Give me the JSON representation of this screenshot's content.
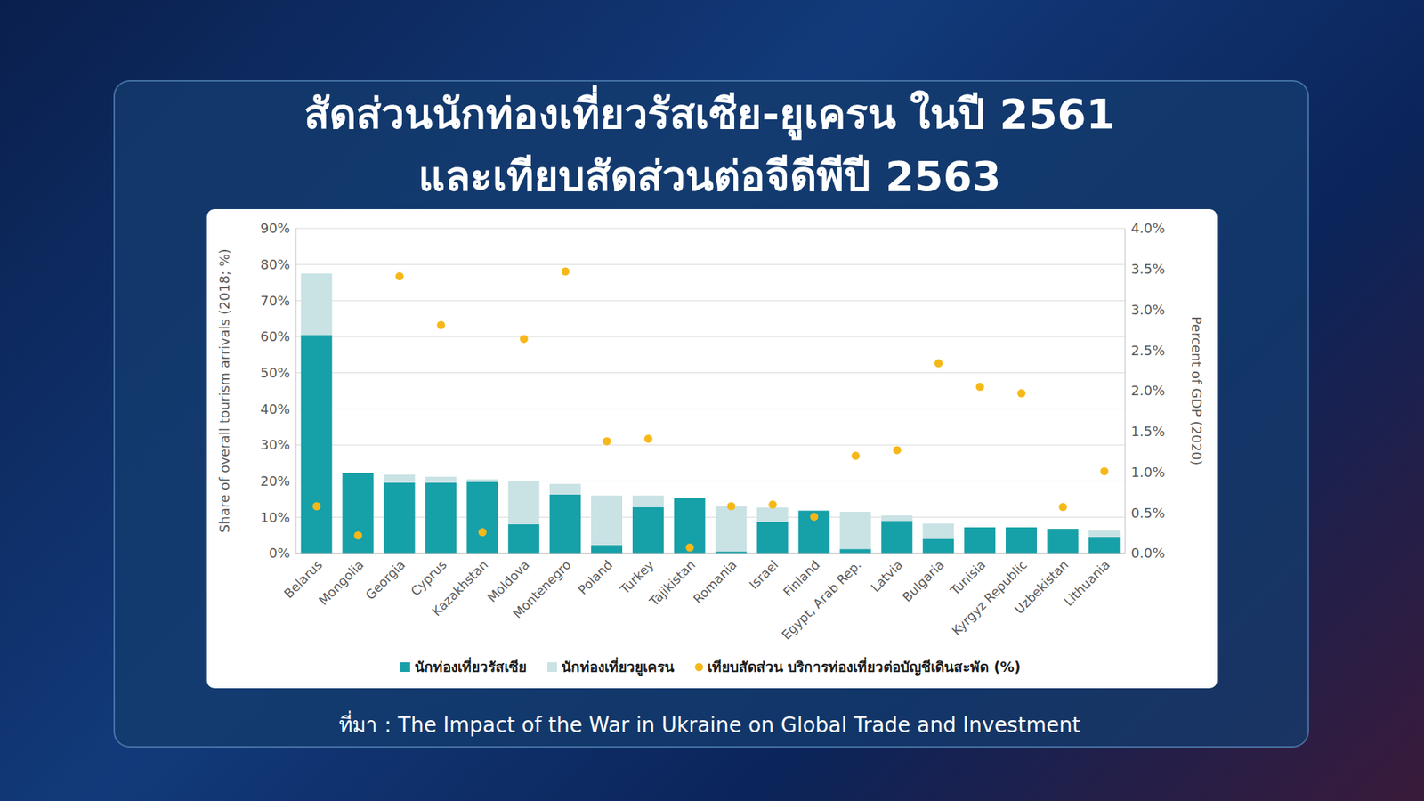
{
  "chart_data": {
    "type": "bar",
    "title": "สัดส่วนนักท่องเที่ยวรัสเซีย-ยูเครน ในปี 2561\nและเทียบสัดส่วนต่อจีดีพีปี 2563",
    "source": "ที่มา : The Impact of the War in Ukraine on Global Trade and Investment",
    "categories": [
      "Belarus",
      "Mongolia",
      "Georgia",
      "Cyprus",
      "Kazakhstan",
      "Moldova",
      "Montenegro",
      "Poland",
      "Turkey",
      "Tajikistan",
      "Romania",
      "Israel",
      "Finland",
      "Egypt, Arab Rep.",
      "Latvia",
      "Bulgaria",
      "Tunisia",
      "Kyrgyz Republic",
      "Uzbekistan",
      "Lithuania"
    ],
    "stacked": true,
    "grid": true,
    "legend": "bottom",
    "ylabel": "Share of overall tourism arrivals (2018; %)",
    "y2label": "Percent of GDP (2020)",
    "ylim": [
      0,
      90
    ],
    "yticks": [
      {
        "value": 0,
        "label": "0%"
      },
      {
        "value": 10,
        "label": "10%"
      },
      {
        "value": 20,
        "label": "20%"
      },
      {
        "value": 30,
        "label": "30%"
      },
      {
        "value": 40,
        "label": "40%"
      },
      {
        "value": 50,
        "label": "50%"
      },
      {
        "value": 60,
        "label": "60%"
      },
      {
        "value": 70,
        "label": "70%"
      },
      {
        "value": 80,
        "label": "80%"
      },
      {
        "value": 90,
        "label": "90%"
      }
    ],
    "y2lim": [
      0,
      4
    ],
    "y2ticks": [
      {
        "value": 0,
        "label": "0.0%"
      },
      {
        "value": 0.5,
        "label": "0.5%"
      },
      {
        "value": 1,
        "label": "1.0%"
      },
      {
        "value": 1.5,
        "label": "1.5%"
      },
      {
        "value": 2,
        "label": "2.0%"
      },
      {
        "value": 2.5,
        "label": "2.5%"
      },
      {
        "value": 3,
        "label": "3.0%"
      },
      {
        "value": 3.5,
        "label": "3.5%"
      },
      {
        "value": 4,
        "label": "4.0%"
      }
    ],
    "series": [
      {
        "name": "นักท่องเที่ยวรัสเซีย",
        "type": "bar",
        "color": "#16a0a8",
        "values": [
          60.5,
          22.2,
          19.5,
          19.5,
          19.8,
          8,
          16.3,
          2.3,
          12.8,
          15.3,
          0.5,
          8.7,
          11.8,
          1.2,
          9,
          4,
          7.2,
          7.2,
          6.8,
          4.5
        ]
      },
      {
        "name": "นักท่องเที่ยวยูเครน",
        "type": "bar",
        "color": "#c9e2e4",
        "values": [
          17,
          0,
          2.3,
          1.7,
          0.7,
          12,
          2.9,
          13.7,
          3.2,
          0,
          12.5,
          4,
          0,
          10.3,
          1.5,
          4.2,
          0,
          0,
          0,
          1.8
        ]
      },
      {
        "name": "เทียบสัดส่วน บริการท่องเที่ยวต่อบัญชีเดินสะพัด (%)",
        "type": "scatter",
        "axis": "y2",
        "marker": "circle",
        "color": "#f6b819",
        "values": [
          0.58,
          0.22,
          3.41,
          2.81,
          0.26,
          2.64,
          3.47,
          1.38,
          1.41,
          0.07,
          0.58,
          0.6,
          0.45,
          1.2,
          1.27,
          2.34,
          2.05,
          1.97,
          0.57,
          1.01
        ]
      }
    ]
  }
}
